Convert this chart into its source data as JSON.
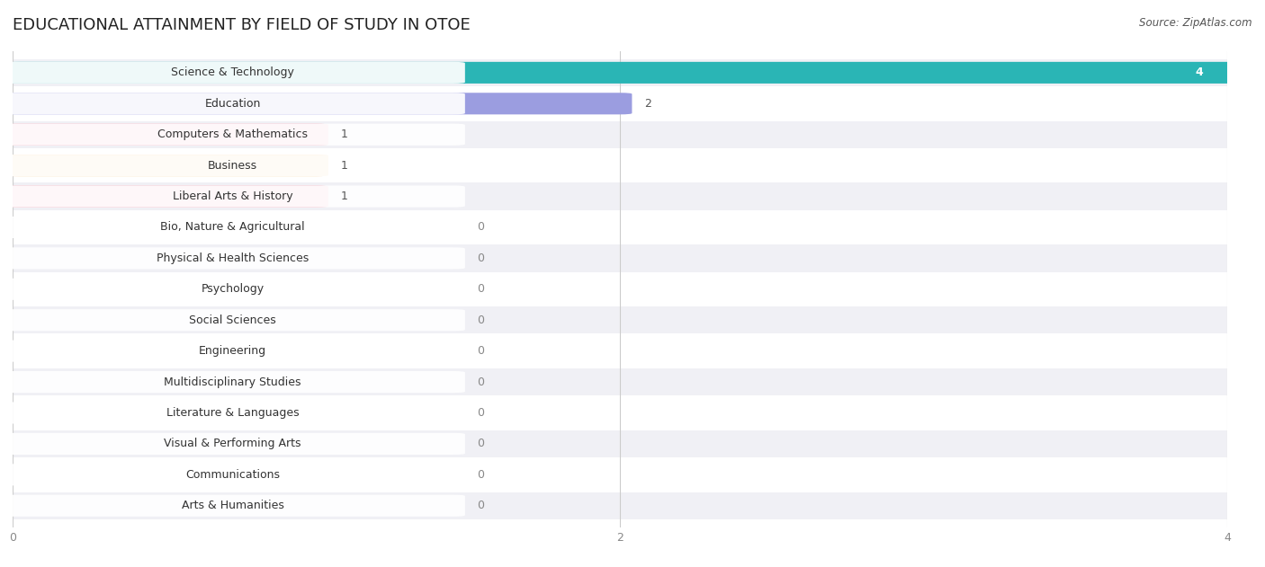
{
  "title": "EDUCATIONAL ATTAINMENT BY FIELD OF STUDY IN OTOE",
  "source": "Source: ZipAtlas.com",
  "categories": [
    "Science & Technology",
    "Education",
    "Computers & Mathematics",
    "Business",
    "Liberal Arts & History",
    "Bio, Nature & Agricultural",
    "Physical & Health Sciences",
    "Psychology",
    "Social Sciences",
    "Engineering",
    "Multidisciplinary Studies",
    "Literature & Languages",
    "Visual & Performing Arts",
    "Communications",
    "Arts & Humanities"
  ],
  "values": [
    4,
    2,
    1,
    1,
    1,
    0,
    0,
    0,
    0,
    0,
    0,
    0,
    0,
    0,
    0
  ],
  "bar_colors": [
    "#2ab5b5",
    "#9b9de0",
    "#f4a0b0",
    "#f9c98a",
    "#f4a0b0",
    "#90c8e8",
    "#c8aee0",
    "#7dcdc8",
    "#b0b0e8",
    "#f4a0b0",
    "#f9c98a",
    "#f4a0b0",
    "#90c8e8",
    "#c8aee0",
    "#7dcdc8"
  ],
  "xlim": [
    0,
    4
  ],
  "xticks": [
    0,
    2,
    4
  ],
  "background_color": "#ffffff",
  "row_bg_colors": [
    "#f0f0f5",
    "#ffffff"
  ],
  "title_fontsize": 13,
  "label_fontsize": 9.0,
  "value_fontsize": 9.0
}
